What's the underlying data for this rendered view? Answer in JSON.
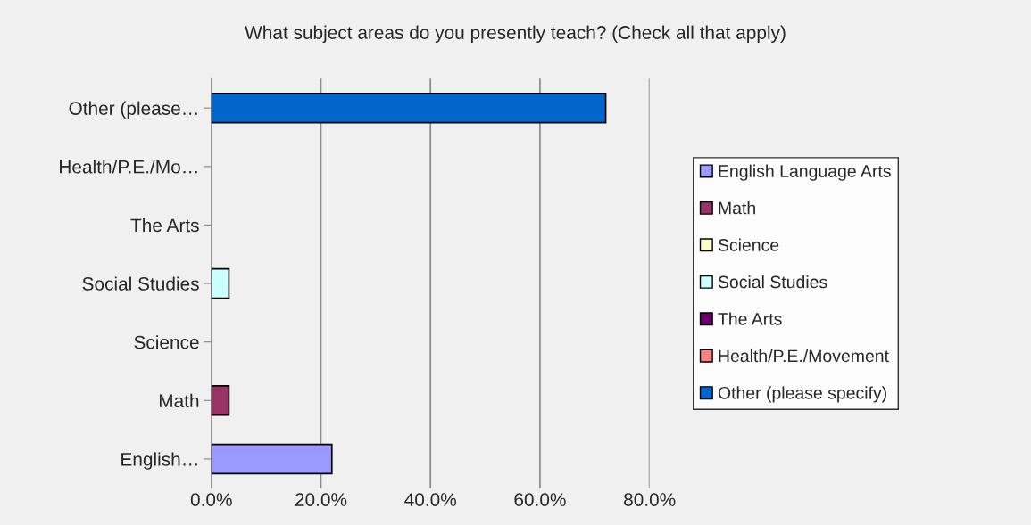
{
  "chart_data": {
    "type": "bar",
    "orientation": "horizontal",
    "title": "What subject areas do you presently teach? (Check all that apply)",
    "categories": [
      "Other (please…",
      "Health/P.E./Mo…",
      "The Arts",
      "Social Studies",
      "Science",
      "Math",
      "English…"
    ],
    "series": [
      {
        "name": "English Language Arts",
        "color": "#9999ff",
        "values": [
          null,
          null,
          null,
          null,
          null,
          null,
          22.0
        ]
      },
      {
        "name": "Math",
        "color": "#993366",
        "values": [
          null,
          null,
          null,
          null,
          null,
          3.2,
          null
        ]
      },
      {
        "name": "Science",
        "color": "#ffffcc",
        "values": [
          null,
          null,
          null,
          null,
          0,
          null,
          null
        ]
      },
      {
        "name": "Social Studies",
        "color": "#ccffff",
        "values": [
          null,
          null,
          null,
          3.2,
          null,
          null,
          null
        ]
      },
      {
        "name": "The Arts",
        "color": "#660066",
        "values": [
          null,
          null,
          0,
          null,
          null,
          null,
          null
        ]
      },
      {
        "name": "Health/P.E./Movement",
        "color": "#ff8080",
        "values": [
          null,
          0,
          null,
          null,
          null,
          null,
          null
        ]
      },
      {
        "name": "Other (please specify)",
        "color": "#0066cc",
        "values": [
          72.0,
          null,
          null,
          null,
          null,
          null,
          null
        ]
      }
    ],
    "xlim": [
      0,
      80
    ],
    "xticks": [
      {
        "value": 0,
        "label": "0.0%"
      },
      {
        "value": 20,
        "label": "20.0%"
      },
      {
        "value": 40,
        "label": "40.0%"
      },
      {
        "value": 60,
        "label": "60.0%"
      },
      {
        "value": 80,
        "label": "80.0%"
      }
    ],
    "grid": "x",
    "legend": "right"
  }
}
